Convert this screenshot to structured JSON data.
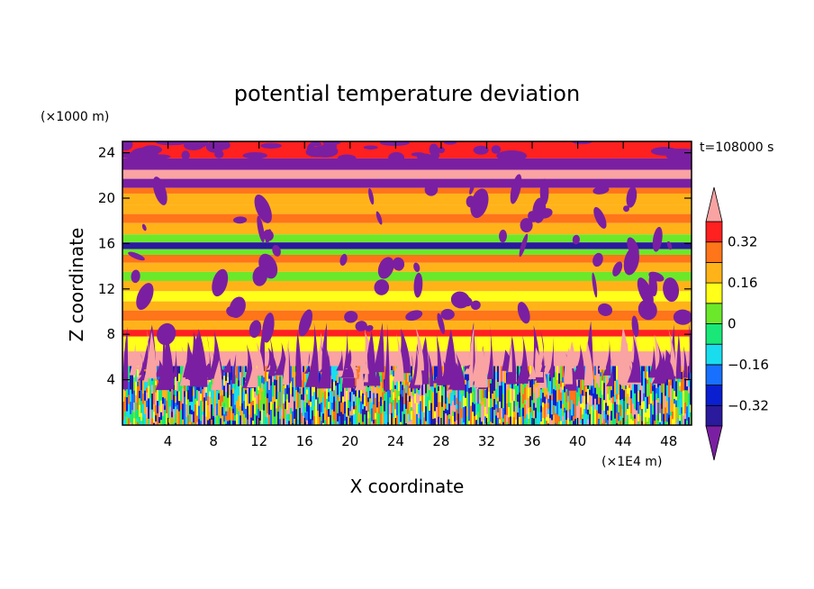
{
  "chart_data": {
    "type": "heatmap",
    "title": "potential temperature deviation",
    "time_label": "t=108000 s",
    "xlabel": "X coordinate",
    "ylabel": "Z coordinate",
    "x_unit": "(×1E4 m)",
    "y_unit": "(×1000 m)",
    "xlim": [
      0,
      50
    ],
    "ylim": [
      0,
      25
    ],
    "x_ticks": [
      4,
      8,
      12,
      16,
      20,
      24,
      28,
      32,
      36,
      40,
      44,
      48
    ],
    "y_ticks": [
      4,
      8,
      12,
      16,
      20,
      24
    ],
    "x_tick_labels": [
      "4",
      "8",
      "12",
      "16",
      "20",
      "24",
      "28",
      "32",
      "36",
      "40",
      "44",
      "48"
    ],
    "y_tick_labels": [
      "4",
      "8",
      "12",
      "16",
      "20",
      "24"
    ],
    "colorbar": {
      "extend": "both",
      "levels": [
        -0.4,
        -0.32,
        -0.24,
        -0.16,
        -0.08,
        0,
        0.08,
        0.16,
        0.24,
        0.32,
        0.4
      ],
      "colors": [
        "#7a1fa2",
        "#2a1a9c",
        "#0a1fd0",
        "#1870ff",
        "#19ddee",
        "#19e878",
        "#6ce82a",
        "#ffff19",
        "#ffb319",
        "#ff7519",
        "#ff2020",
        "#f9a3a3"
      ],
      "labels": [
        {
          "value": 0.32,
          "text": "0.32"
        },
        {
          "value": 0.16,
          "text": "0.16"
        },
        {
          "value": 0,
          "text": "0"
        },
        {
          "value": -0.16,
          "text": "−0.16"
        },
        {
          "value": -0.32,
          "text": "−0.32"
        }
      ]
    },
    "layers": [
      {
        "z": [
          23.5,
          25
        ],
        "value": 0.36
      },
      {
        "z": [
          22.5,
          23.5
        ],
        "value": -0.44
      },
      {
        "z": [
          21.7,
          22.5
        ],
        "value": 0.44
      },
      {
        "z": [
          20.9,
          21.7
        ],
        "value": -0.44
      },
      {
        "z": [
          20.4,
          20.9
        ],
        "value": 0.26
      },
      {
        "z": [
          19.4,
          20.4
        ],
        "value": 0.16
      },
      {
        "z": [
          18.6,
          19.4
        ],
        "value": 0.2
      },
      {
        "z": [
          17.8,
          18.6
        ],
        "value": 0.26
      },
      {
        "z": [
          16.8,
          17.8
        ],
        "value": 0.18
      },
      {
        "z": [
          16.1,
          16.8
        ],
        "value": 0.07
      },
      {
        "z": [
          15.5,
          16.1
        ],
        "value": -0.36
      },
      {
        "z": [
          15.0,
          15.5
        ],
        "value": 0.05
      },
      {
        "z": [
          14.3,
          15.0
        ],
        "value": 0.26
      },
      {
        "z": [
          13.5,
          14.3
        ],
        "value": 0.16
      },
      {
        "z": [
          12.7,
          13.5
        ],
        "value": 0.05
      },
      {
        "z": [
          11.8,
          12.7
        ],
        "value": 0.2
      },
      {
        "z": [
          10.9,
          11.8
        ],
        "value": 0.1
      },
      {
        "z": [
          10.1,
          10.9
        ],
        "value": 0.2
      },
      {
        "z": [
          9.2,
          10.1
        ],
        "value": 0.3
      },
      {
        "z": [
          8.4,
          9.2
        ],
        "value": 0.16
      },
      {
        "z": [
          7.8,
          8.4
        ],
        "value": 0.36
      },
      {
        "z": [
          6.5,
          7.8
        ],
        "value": 0.1
      },
      {
        "z": [
          5.2,
          6.5
        ],
        "value": 0.44
      },
      {
        "z": [
          0,
          5.2
        ],
        "value": 0.0
      }
    ]
  }
}
